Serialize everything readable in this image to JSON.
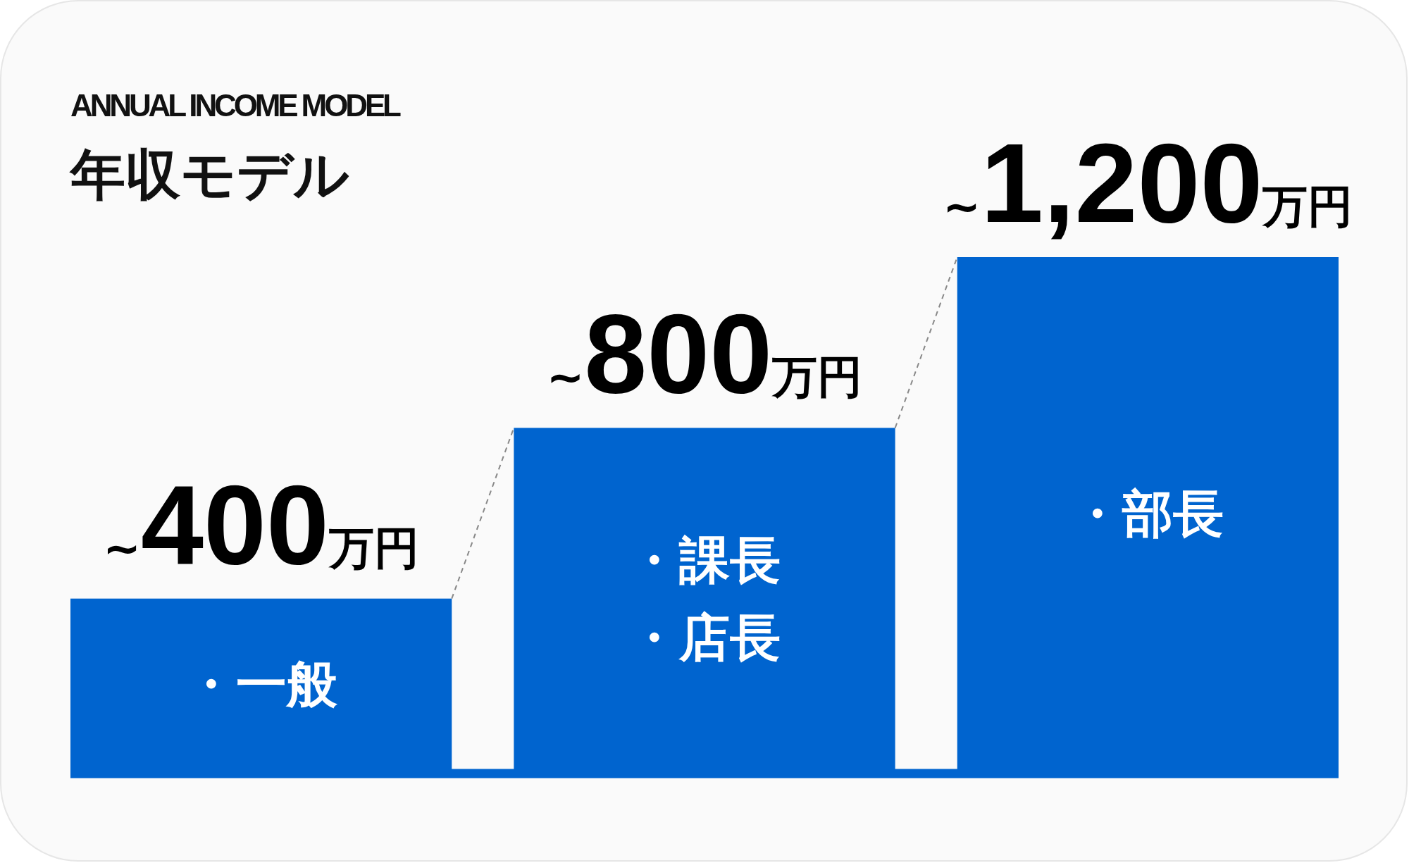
{
  "chart_data": {
    "type": "bar",
    "subtitle": "ANNUAL INCOME MODEL",
    "title": "年収モデル",
    "categories": [
      "・一般",
      "・課長・店長",
      "・部長"
    ],
    "values": [
      400,
      800,
      1200
    ],
    "value_labels": [
      "~400万円",
      "~800万円",
      "~1,200万円"
    ],
    "color": "#0064cf"
  }
}
